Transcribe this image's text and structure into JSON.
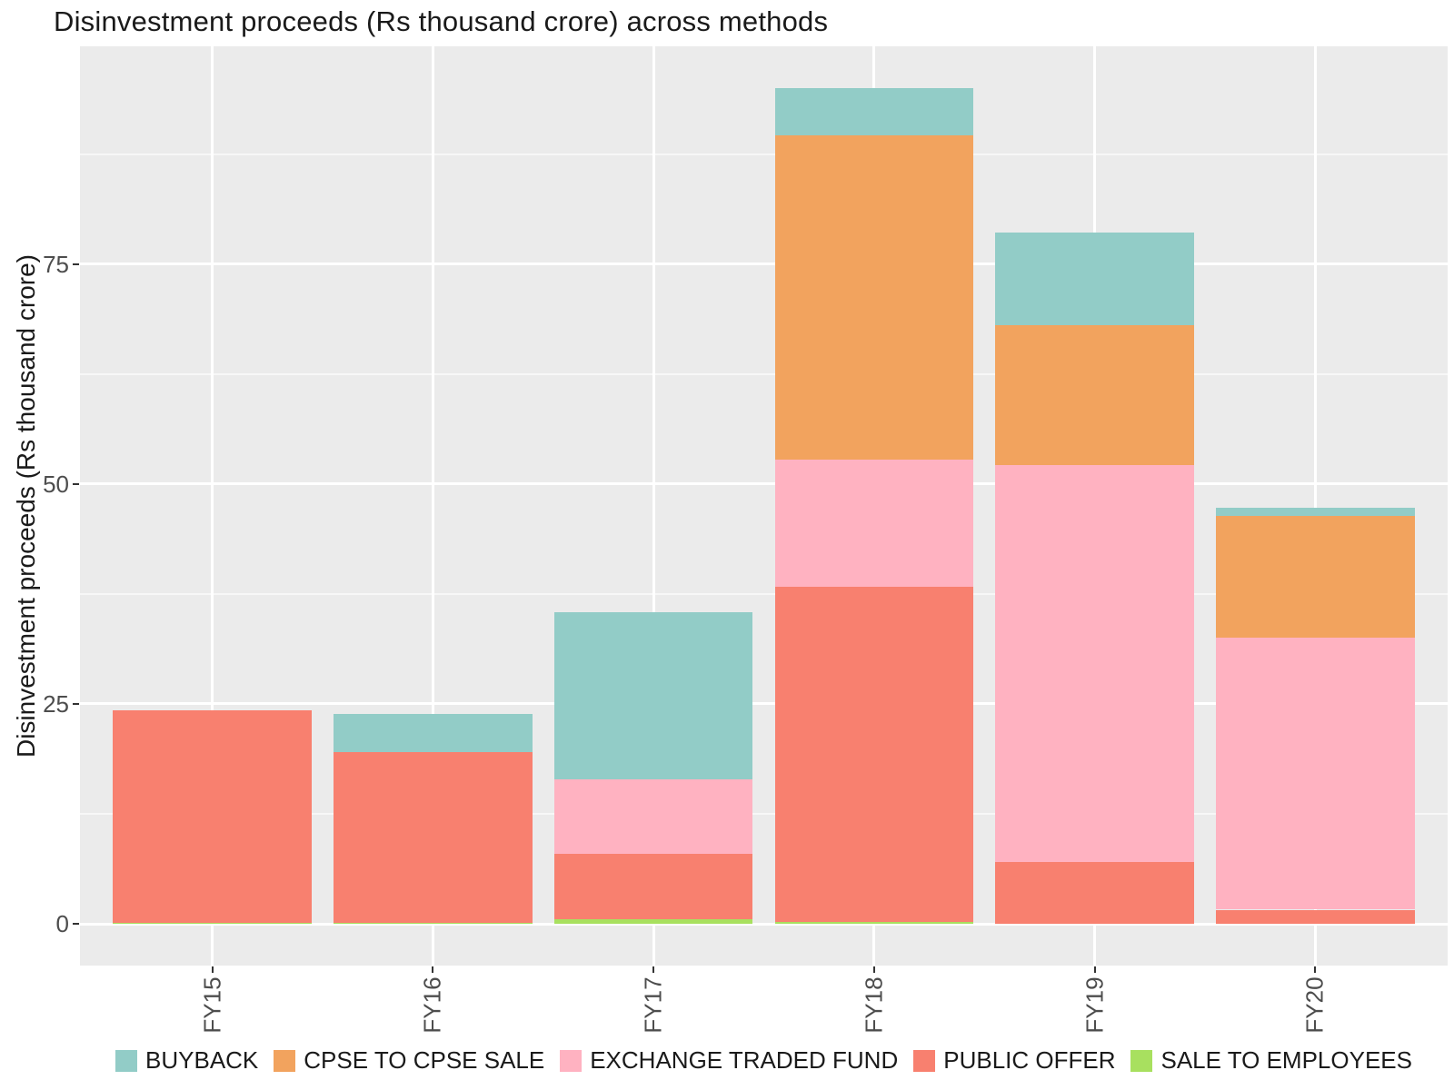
{
  "title": "Disinvestment proceeds (Rs thousand crore) across methods",
  "y_axis": {
    "label": "Disinvestment proceeds (Rs thousand crore)",
    "ticks": [
      "0",
      "25",
      "50",
      "75"
    ]
  },
  "x_axis": {
    "categories": [
      "FY15",
      "FY16",
      "FY17",
      "FY18",
      "FY19",
      "FY20"
    ]
  },
  "legend": {
    "position": "bottom",
    "items": [
      "BUYBACK",
      "CPSE TO CPSE SALE",
      "EXCHANGE TRADED FUND",
      "PUBLIC OFFER",
      "SALE TO EMPLOYEES"
    ]
  },
  "colors": {
    "panel_background": "#EBEBEB",
    "gridline": "#FFFFFF",
    "axis_text": "#4D4D4D",
    "tick_mark": "#333333"
  },
  "chart_data": {
    "type": "bar",
    "stacked": true,
    "title": "Disinvestment proceeds (Rs thousand crore) across methods",
    "xlabel": "",
    "ylabel": "Disinvestment proceeds (Rs thousand crore)",
    "categories": [
      "FY15",
      "FY16",
      "FY17",
      "FY18",
      "FY19",
      "FY20"
    ],
    "series": [
      {
        "name": "BUYBACK",
        "color": "#92CCC7",
        "values": [
          0,
          4.4,
          19.0,
          5.4,
          10.6,
          0.9
        ]
      },
      {
        "name": "CPSE TO CPSE SALE",
        "color": "#F2A35E",
        "values": [
          0,
          0,
          0,
          36.8,
          15.9,
          13.9
        ]
      },
      {
        "name": "EXCHANGE TRADED FUND",
        "color": "#FFB2C1",
        "values": [
          0,
          0,
          8.4,
          14.5,
          45.1,
          30.9
        ]
      },
      {
        "name": "PUBLIC OFFER",
        "color": "#F8806F",
        "values": [
          24.2,
          19.4,
          7.5,
          38.1,
          7.0,
          1.6
        ]
      },
      {
        "name": "SALE TO EMPLOYEES",
        "color": "#A8E05F",
        "values": [
          0.1,
          0.1,
          0.5,
          0.2,
          0,
          0
        ]
      }
    ],
    "stack_order_bottom_to_top": [
      "SALE TO EMPLOYEES",
      "PUBLIC OFFER",
      "EXCHANGE TRADED FUND",
      "CPSE TO CPSE SALE",
      "BUYBACK"
    ],
    "totals_by_category": [
      24.3,
      23.9,
      35.4,
      95.0,
      78.6,
      47.3
    ],
    "y_ticks": [
      0,
      25,
      50,
      75
    ],
    "y_minor_gridlines": [
      12.5,
      37.5,
      62.5,
      87.5
    ],
    "ylim": [
      0,
      95
    ],
    "grid": true,
    "legend_position": "bottom"
  }
}
